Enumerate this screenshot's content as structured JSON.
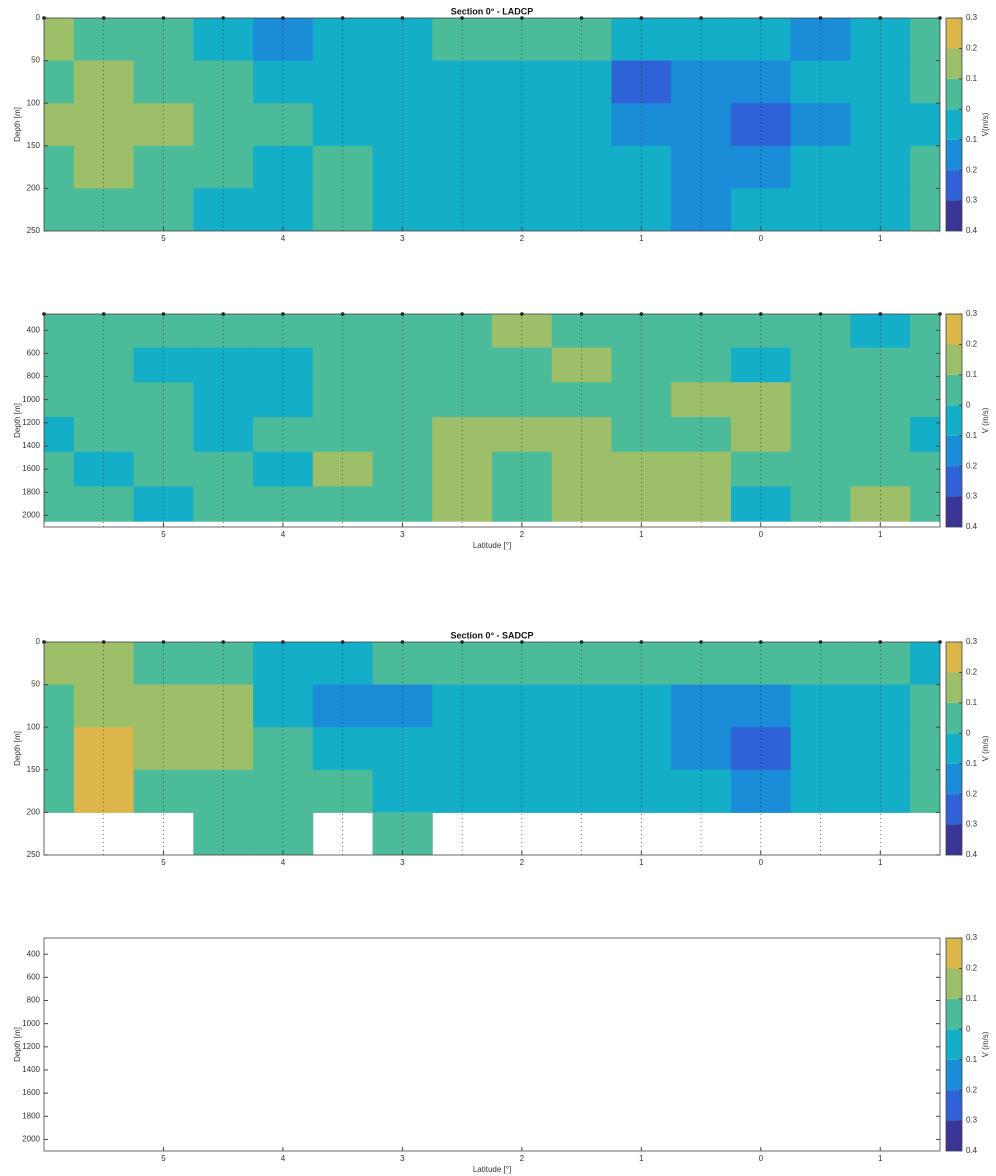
{
  "chart_data": [
    {
      "type": "contour",
      "title": "Section 0° - LADCP",
      "ylabel": "Depth [m]",
      "xlim": [
        -6,
        1.5
      ],
      "ylim": [
        250,
        0
      ],
      "xticks": [
        {
          "value": -5,
          "label": "5"
        },
        {
          "value": -4,
          "label": "4"
        },
        {
          "value": -3,
          "label": "3"
        },
        {
          "value": -2,
          "label": "2"
        },
        {
          "value": -1,
          "label": "1"
        },
        0,
        1
      ],
      "yticks": [
        0,
        50,
        100,
        150,
        200,
        250
      ],
      "stations": [
        -6,
        -5.5,
        -5,
        -4.5,
        -4,
        -3.5,
        -3,
        -2.5,
        -2,
        -1.5,
        -1,
        -0.5,
        0,
        0.5,
        1,
        1.5
      ],
      "field": {
        "x": [
          -6,
          -5.5,
          -5,
          -4.5,
          -4,
          -3.5,
          -3,
          -2.5,
          -2,
          -1.5,
          -1,
          -0.5,
          0,
          0.5,
          1,
          1.5
        ],
        "depth": [
          25,
          75,
          125,
          175,
          225
        ],
        "values": [
          [
            0.15,
            0.05,
            0.05,
            -0.05,
            -0.15,
            -0.1,
            -0.05,
            0.05,
            0.05,
            0.05,
            -0.05,
            -0.05,
            -0.1,
            -0.15,
            -0.05,
            0.05
          ],
          [
            0.05,
            0.15,
            0.05,
            0.05,
            -0.05,
            -0.05,
            -0.05,
            -0.05,
            -0.05,
            -0.05,
            -0.25,
            -0.15,
            -0.15,
            -0.05,
            -0.05,
            0.05
          ],
          [
            0.15,
            0.15,
            0.15,
            0.05,
            0.05,
            -0.05,
            -0.05,
            -0.05,
            -0.05,
            -0.05,
            -0.15,
            -0.15,
            -0.25,
            -0.15,
            -0.05,
            -0.05
          ],
          [
            0.05,
            0.15,
            0.05,
            0.05,
            -0.05,
            0.05,
            -0.05,
            -0.05,
            -0.05,
            -0.05,
            -0.05,
            -0.15,
            -0.15,
            -0.05,
            -0.05,
            0.05
          ],
          [
            0.05,
            0.05,
            0.05,
            -0.05,
            -0.05,
            0.05,
            -0.05,
            -0.05,
            -0.05,
            -0.05,
            -0.05,
            -0.15,
            -0.05,
            -0.05,
            -0.05,
            0.05
          ]
        ]
      },
      "colorbar": {
        "label": "V(m/s)",
        "lim": [
          -0.4,
          0.3
        ],
        "ticks": [
          {
            "value": -0.4,
            "label": "0.4"
          },
          {
            "value": -0.3,
            "label": "0.3"
          },
          {
            "value": -0.2,
            "label": "0.2"
          },
          {
            "value": -0.1,
            "label": "0.1"
          },
          0,
          0.1,
          0.2,
          0.3
        ],
        "colors": [
          "#3a3597",
          "#2f62d6",
          "#1a8cd8",
          "#14aec8",
          "#4cbb9a",
          "#9ebf6a",
          "#dcb64a"
        ]
      }
    },
    {
      "type": "contour",
      "xlabel": "Latitude [°]",
      "ylabel": "Depth [m]",
      "xlim": [
        -6,
        1.5
      ],
      "ylim": [
        2100,
        260
      ],
      "xticks": [
        {
          "value": -5,
          "label": "5"
        },
        {
          "value": -4,
          "label": "4"
        },
        {
          "value": -3,
          "label": "3"
        },
        {
          "value": -2,
          "label": "2"
        },
        {
          "value": -1,
          "label": "1"
        },
        0,
        1
      ],
      "yticks": [
        400,
        600,
        800,
        1000,
        1200,
        1400,
        1600,
        1800,
        2000
      ],
      "stations": [
        -6,
        -5.5,
        -5,
        -4.5,
        -4,
        -3.5,
        -3,
        -2.5,
        -2,
        -1.5,
        -1,
        -0.5,
        0,
        0.5,
        1,
        1.5
      ],
      "field": {
        "x": [
          -6,
          -5.5,
          -5,
          -4.5,
          -4,
          -3.5,
          -3,
          -2.5,
          -2,
          -1.5,
          -1,
          -0.5,
          0,
          0.5,
          1,
          1.5
        ],
        "depth": [
          400,
          700,
          1000,
          1300,
          1600,
          1900
        ],
        "values": [
          [
            0.05,
            0.05,
            0.05,
            0.05,
            0.05,
            0.05,
            0.05,
            0.05,
            0.15,
            0.05,
            0.05,
            0.05,
            0.05,
            0.05,
            -0.05,
            0.05
          ],
          [
            0.05,
            0.05,
            -0.05,
            -0.05,
            -0.05,
            0.05,
            0.05,
            0.05,
            0.05,
            0.15,
            0.05,
            0.05,
            -0.05,
            0.05,
            0.05,
            0.05
          ],
          [
            0.05,
            0.05,
            0.05,
            -0.05,
            -0.05,
            0.05,
            0.05,
            0.05,
            0.05,
            0.05,
            0.05,
            0.15,
            0.15,
            0.05,
            0.05,
            0.05
          ],
          [
            -0.05,
            0.05,
            0.05,
            -0.05,
            0.05,
            0.05,
            0.05,
            0.15,
            0.15,
            0.15,
            0.05,
            0.05,
            0.15,
            0.05,
            0.05,
            -0.05
          ],
          [
            0.05,
            -0.05,
            0.05,
            0.05,
            -0.05,
            0.15,
            0.05,
            0.15,
            0.05,
            0.15,
            0.15,
            0.15,
            0.05,
            0.05,
            0.05,
            0.05
          ],
          [
            0.05,
            0.05,
            -0.05,
            0.05,
            0.05,
            0.05,
            0.05,
            0.15,
            0.05,
            0.15,
            0.15,
            0.15,
            -0.05,
            0.05,
            0.15,
            0.05
          ]
        ]
      },
      "colorbar": {
        "label": "V (m/s)",
        "lim": [
          -0.4,
          0.3
        ],
        "ticks": [
          {
            "value": -0.4,
            "label": "0.4"
          },
          {
            "value": -0.3,
            "label": "0.3"
          },
          {
            "value": -0.2,
            "label": "0.2"
          },
          {
            "value": -0.1,
            "label": "0.1"
          },
          0,
          0.1,
          0.2,
          0.3
        ],
        "colors": [
          "#3a3597",
          "#2f62d6",
          "#1a8cd8",
          "#14aec8",
          "#4cbb9a",
          "#9ebf6a",
          "#dcb64a"
        ]
      }
    },
    {
      "type": "contour",
      "title": "Section 0° - SADCP",
      "ylabel": "Depth [m]",
      "xlim": [
        -6,
        1.5
      ],
      "ylim": [
        250,
        0
      ],
      "xticks": [
        {
          "value": -5,
          "label": "5"
        },
        {
          "value": -4,
          "label": "4"
        },
        {
          "value": -3,
          "label": "3"
        },
        {
          "value": -2,
          "label": "2"
        },
        {
          "value": -1,
          "label": "1"
        },
        0,
        1
      ],
      "yticks": [
        0,
        50,
        100,
        150,
        200,
        250
      ],
      "stations": [
        -6,
        -5.5,
        -5,
        -4.5,
        -4,
        -3.5,
        -3,
        -2.5,
        -2,
        -1.5,
        -1,
        -0.5,
        0,
        0.5,
        1,
        1.5
      ],
      "field": {
        "x": [
          -6,
          -5.5,
          -5,
          -4.5,
          -4,
          -3.5,
          -3,
          -2.5,
          -2,
          -1.5,
          -1,
          -0.5,
          0,
          0.5,
          1,
          1.5
        ],
        "depth": [
          25,
          75,
          125,
          175,
          225
        ],
        "values": [
          [
            0.15,
            0.15,
            0.05,
            0.05,
            -0.05,
            -0.05,
            0.05,
            0.05,
            0.05,
            0.05,
            0.05,
            0.05,
            0.05,
            0.05,
            0.05,
            -0.05
          ],
          [
            0.05,
            0.15,
            0.15,
            0.15,
            -0.05,
            -0.15,
            -0.15,
            -0.05,
            -0.05,
            -0.05,
            -0.05,
            -0.15,
            -0.15,
            -0.05,
            -0.05,
            0.05
          ],
          [
            0.05,
            0.25,
            0.15,
            0.15,
            0.05,
            -0.05,
            -0.05,
            -0.05,
            -0.05,
            -0.05,
            -0.05,
            -0.15,
            -0.25,
            -0.05,
            -0.05,
            0.05
          ],
          [
            0.05,
            0.25,
            0.05,
            0.05,
            0.05,
            0.05,
            -0.05,
            -0.05,
            -0.05,
            -0.05,
            -0.05,
            -0.05,
            -0.15,
            -0.05,
            -0.05,
            0.05
          ],
          [
            null,
            null,
            null,
            0.05,
            0.05,
            null,
            0.05,
            null,
            null,
            null,
            null,
            null,
            null,
            null,
            null,
            null
          ]
        ]
      },
      "colorbar": {
        "label": "V (m/s)",
        "lim": [
          -0.4,
          0.3
        ],
        "ticks": [
          {
            "value": -0.4,
            "label": "0.4"
          },
          {
            "value": -0.3,
            "label": "0.3"
          },
          {
            "value": -0.2,
            "label": "0.2"
          },
          {
            "value": -0.1,
            "label": "0.1"
          },
          0,
          0.1,
          0.2,
          0.3
        ],
        "colors": [
          "#3a3597",
          "#2f62d6",
          "#1a8cd8",
          "#14aec8",
          "#4cbb9a",
          "#9ebf6a",
          "#dcb64a"
        ]
      }
    },
    {
      "type": "contour",
      "xlabel": "Latitude [°]",
      "ylabel": "Depth [m]",
      "xlim": [
        -6,
        1.5
      ],
      "ylim": [
        2100,
        260
      ],
      "xticks": [
        {
          "value": -5,
          "label": "5"
        },
        {
          "value": -4,
          "label": "4"
        },
        {
          "value": -3,
          "label": "3"
        },
        {
          "value": -2,
          "label": "2"
        },
        {
          "value": -1,
          "label": "1"
        },
        0,
        1
      ],
      "yticks": [
        400,
        600,
        800,
        1000,
        1200,
        1400,
        1600,
        1800,
        2000
      ],
      "colorbar": {
        "label": "V (m/s)",
        "lim": [
          -0.4,
          0.3
        ],
        "ticks": [
          {
            "value": -0.4,
            "label": "0.4"
          },
          {
            "value": -0.3,
            "label": "0.3"
          },
          {
            "value": -0.2,
            "label": "0.2"
          },
          {
            "value": -0.1,
            "label": "0.1"
          },
          0,
          0.1,
          0.2,
          0.3
        ],
        "colors": [
          "#3a3597",
          "#2f62d6",
          "#1a8cd8",
          "#14aec8",
          "#4cbb9a",
          "#9ebf6a",
          "#dcb64a"
        ]
      }
    }
  ]
}
